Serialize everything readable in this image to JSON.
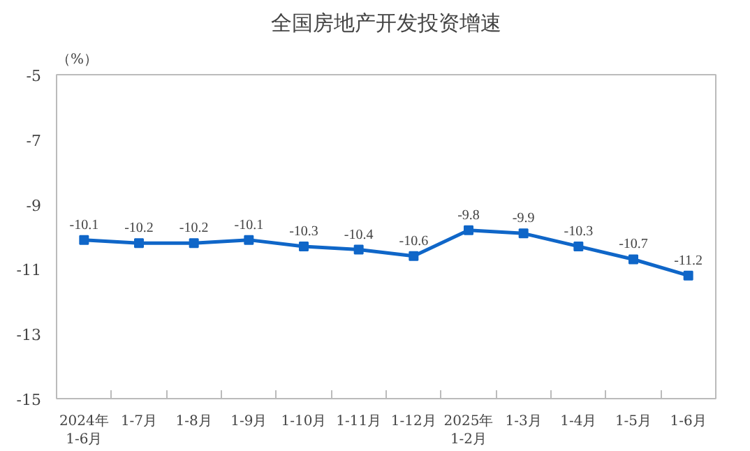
{
  "chart_data": {
    "type": "line",
    "title": "全国房地产开发投资增速",
    "ylabel": "（%）",
    "categories": [
      "2024年\n1-6月",
      "1-7月",
      "1-8月",
      "1-9月",
      "1-10月",
      "1-11月",
      "1-12月",
      "2025年\n1-2月",
      "1-3月",
      "1-4月",
      "1-5月",
      "1-6月"
    ],
    "series": [
      {
        "color": "#0f66c8",
        "values": [
          -10.1,
          -10.2,
          -10.2,
          -10.1,
          -10.3,
          -10.4,
          -10.6,
          -9.8,
          -9.9,
          -10.3,
          -10.7,
          -11.2
        ]
      }
    ],
    "ylim": [
      -15,
      -5
    ],
    "yticks": [
      -15,
      -13,
      -11,
      -9,
      -7,
      -5
    ],
    "grid": false,
    "marker": "square",
    "line_style": "solid",
    "data_labels": true
  }
}
